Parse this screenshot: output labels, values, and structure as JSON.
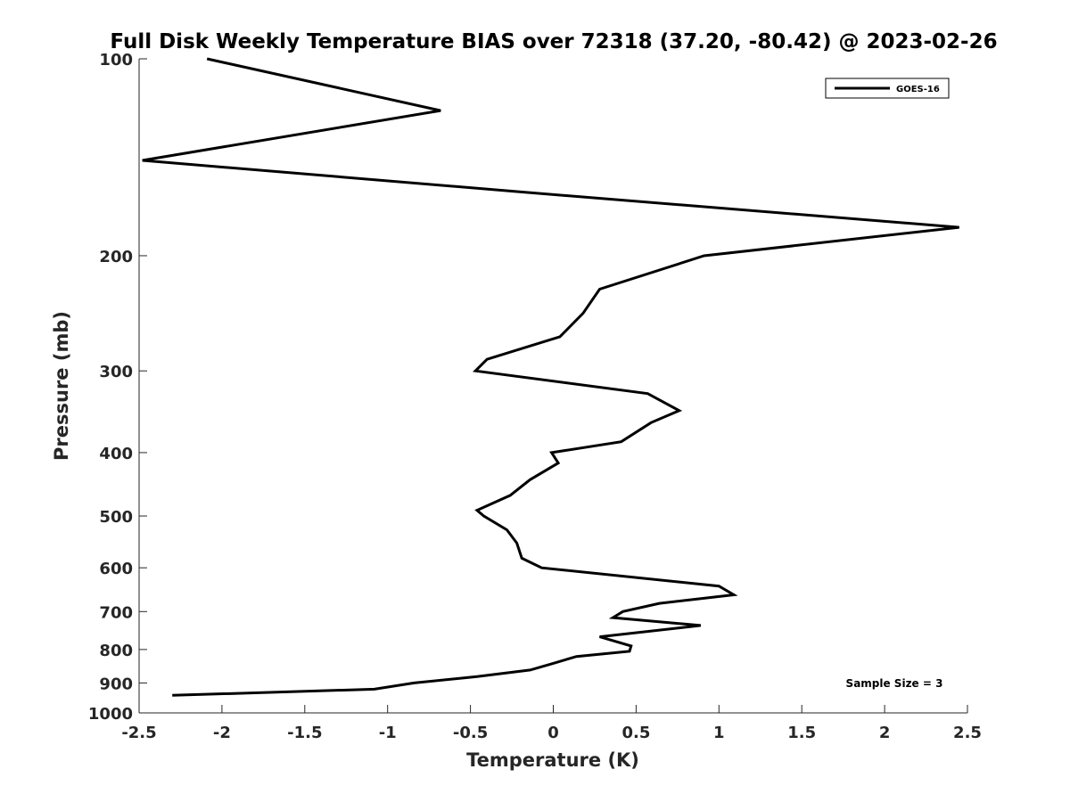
{
  "chart_data": {
    "type": "line",
    "title": "Full Disk Weekly Temperature BIAS over 72318 (37.20, -80.42) @ 2023-02-26",
    "xlabel": "Temperature (K)",
    "ylabel": "Pressure (mb)",
    "xlim": [
      -2.5,
      2.5
    ],
    "ylim": [
      100,
      1000
    ],
    "y_scale": "log",
    "y_reversed": true,
    "x_ticks": [
      "-2.5",
      "-2",
      "-1.5",
      "-1",
      "-0.5",
      "0",
      "0.5",
      "1",
      "1.5",
      "2",
      "2.5"
    ],
    "x_tick_values": [
      -2.5,
      -2,
      -1.5,
      -1,
      -0.5,
      0,
      0.5,
      1,
      1.5,
      2,
      2.5
    ],
    "y_ticks": [
      "100",
      "200",
      "300",
      "400",
      "500",
      "600",
      "700",
      "800",
      "900",
      "1000"
    ],
    "y_tick_values": [
      100,
      200,
      300,
      400,
      500,
      600,
      700,
      800,
      900,
      1000
    ],
    "grid": false,
    "legend_position": "top-right",
    "annotation": "Sample Size = 3",
    "series": [
      {
        "name": "GOES-16",
        "color": "#000000",
        "x": [
          -2.09,
          -0.68,
          -2.48,
          -0.17,
          2.45,
          0.91,
          0.28,
          0.18,
          0.04,
          -0.4,
          -0.47,
          0.57,
          0.76,
          0.59,
          0.41,
          -0.01,
          0.03,
          -0.14,
          -0.26,
          -0.46,
          -0.42,
          -0.28,
          -0.22,
          -0.19,
          -0.07,
          1.0,
          1.09,
          0.64,
          0.42,
          0.36,
          0.89,
          0.28,
          0.47,
          0.46,
          0.14,
          0.0,
          -0.14,
          -0.46,
          -0.84,
          -1.08,
          -2.3
        ],
        "y": [
          100,
          120,
          143,
          160,
          181,
          200,
          225,
          245,
          266,
          288,
          300,
          325,
          345,
          360,
          385,
          400,
          415,
          440,
          465,
          490,
          500,
          525,
          550,
          580,
          600,
          640,
          660,
          680,
          700,
          715,
          735,
          765,
          790,
          805,
          820,
          840,
          860,
          880,
          900,
          920,
          940
        ]
      }
    ]
  }
}
